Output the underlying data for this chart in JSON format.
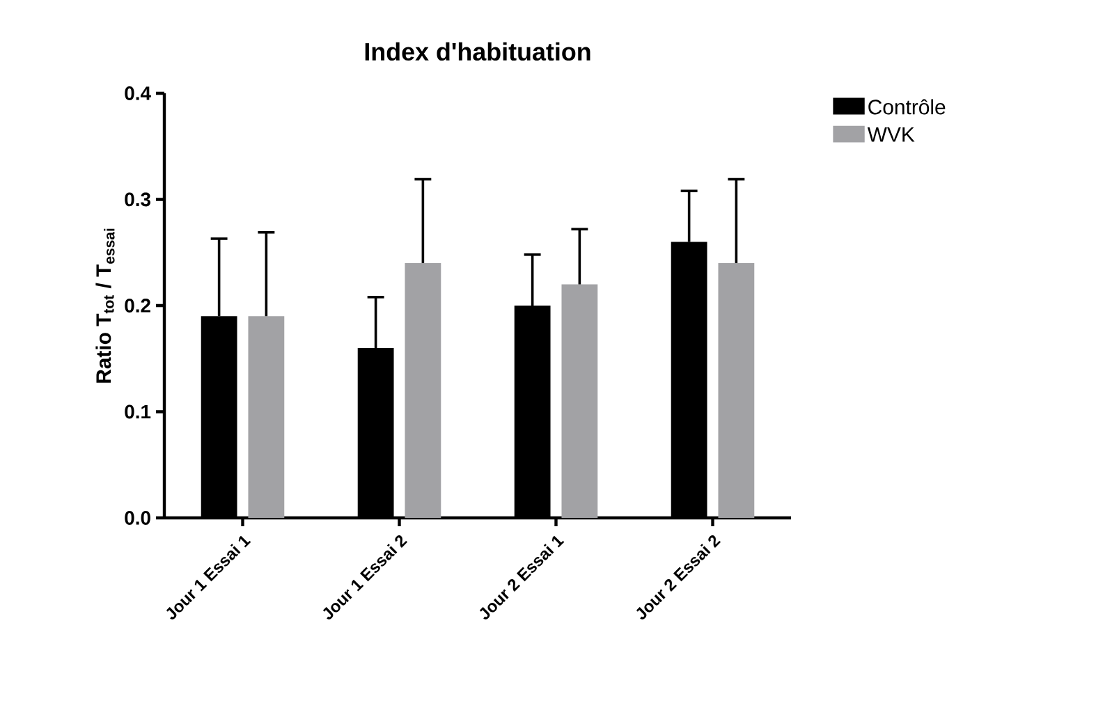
{
  "chart_data": {
    "type": "bar",
    "title": "Index d'habituation",
    "ylabel": "Ratio T$_{tot}$ / T$_{essai}$",
    "categories": [
      "Jour 1 Essai 1",
      "Jour 1 Essai 2",
      "Jour 2 Essai 1",
      "Jour 2 Essai 2"
    ],
    "series": [
      {
        "name": "Contrôle",
        "color": "#000000",
        "values": [
          0.19,
          0.16,
          0.2,
          0.26
        ],
        "errors": [
          [
            0.19,
            0.263
          ],
          [
            0.16,
            0.208
          ],
          [
            0.2,
            0.248
          ],
          [
            0.26,
            0.308
          ]
        ]
      },
      {
        "name": "WVK",
        "color": "#a2a2a5",
        "values": [
          0.19,
          0.24,
          0.22,
          0.24
        ],
        "errors": [
          [
            0.19,
            0.269
          ],
          [
            0.24,
            0.319
          ],
          [
            0.22,
            0.272
          ],
          [
            0.24,
            0.319
          ]
        ]
      }
    ],
    "ylim": [
      0,
      0.4
    ],
    "yticks": [
      {
        "value": 0,
        "label": "0.0"
      },
      0.1,
      0.2,
      0.3,
      {
        "value": 0.4,
        "label": "0.4"
      }
    ],
    "grid": false,
    "legend": "top right"
  }
}
